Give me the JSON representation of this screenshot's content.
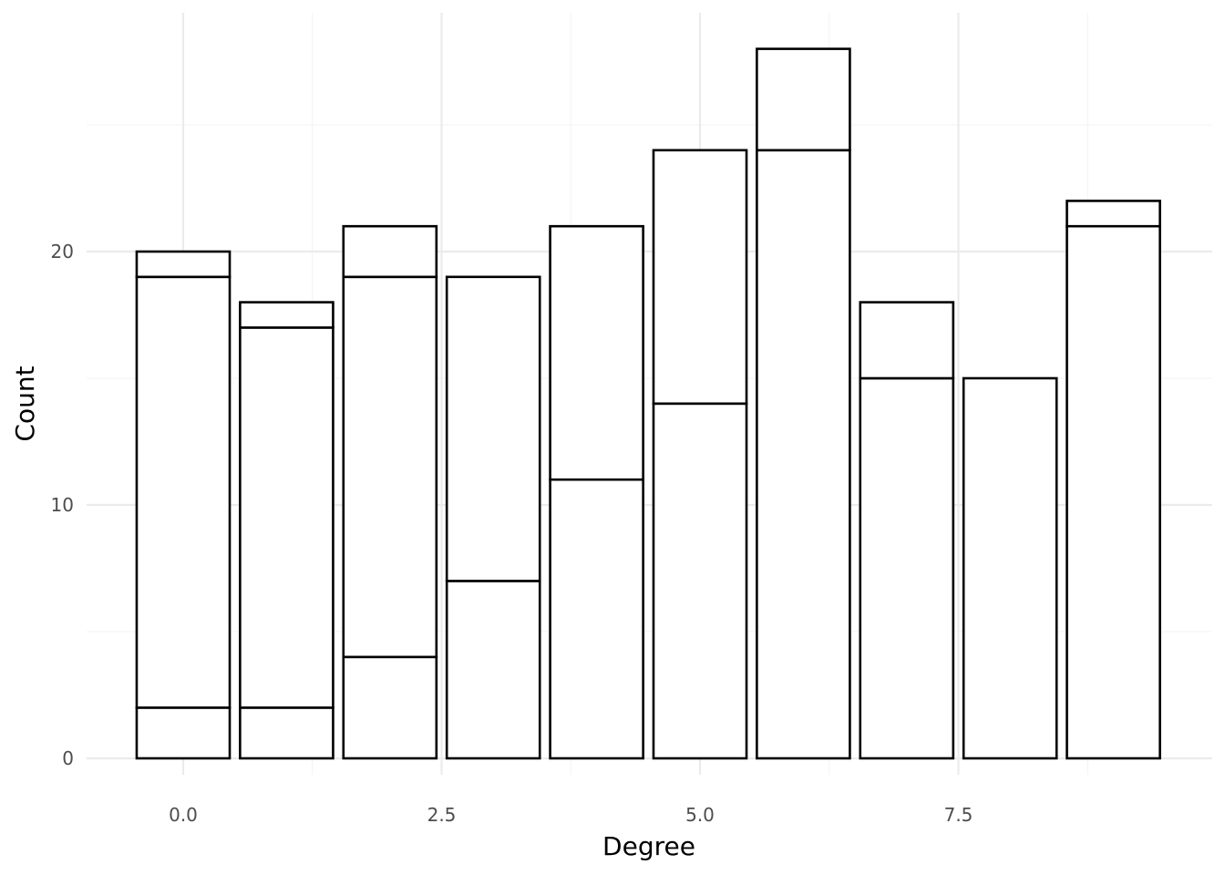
{
  "chart_data": {
    "type": "bar",
    "stacked": true,
    "xlabel": "Degree",
    "ylabel": "Count",
    "xlim": [
      -0.5,
      9.5
    ],
    "ylim": [
      0,
      28
    ],
    "x_ticks": [
      "0.0",
      "2.5",
      "5.0",
      "7.5"
    ],
    "x_tick_values": [
      0,
      2.5,
      5,
      7.5
    ],
    "y_ticks": [
      "0",
      "10",
      "20"
    ],
    "y_tick_values": [
      0,
      10,
      20
    ],
    "grid": true,
    "legend": "none",
    "colors": {
      "bar_fill": "#ffffff",
      "bar_outline": "#000000",
      "grid": "#ebebeb",
      "tick_text": "#4d4d4d"
    },
    "categories": [
      0,
      1,
      2,
      3,
      4,
      5,
      6,
      7,
      8,
      9
    ],
    "series": [
      {
        "values": [
          2,
          2,
          4,
          7,
          11,
          14,
          24,
          15,
          15,
          21
        ]
      },
      {
        "values": [
          17,
          15,
          15,
          12,
          10,
          10,
          4,
          3,
          0,
          0
        ]
      },
      {
        "values": [
          1,
          1,
          2,
          0,
          0,
          0,
          0,
          0,
          0,
          1
        ]
      }
    ],
    "totals": [
      20,
      18,
      21,
      19,
      21,
      24,
      28,
      18,
      15,
      22
    ]
  }
}
